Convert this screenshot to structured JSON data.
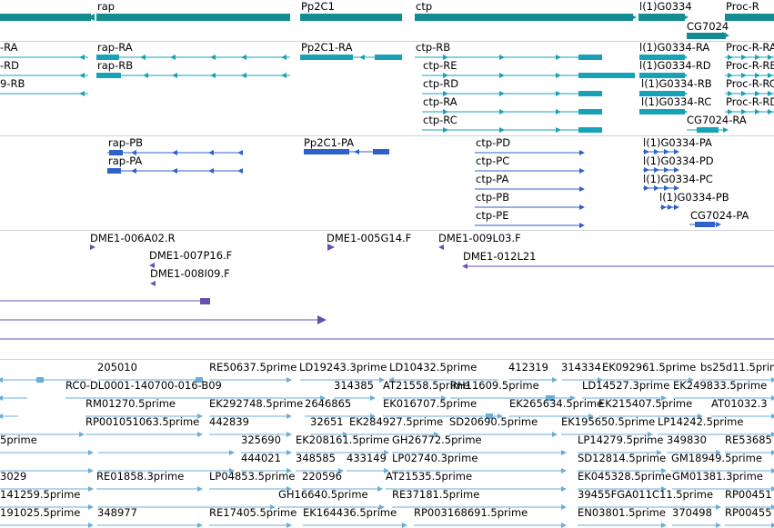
{
  "colors": {
    "gene": "#138d93",
    "transcript": "#17a2b8",
    "translation": "#2f62c9",
    "insertion": "#6a4fae",
    "est": "#6aaed8",
    "separator": "#cfd3d8",
    "background": "#ffffff"
  },
  "tracks": {
    "genes": [
      "rap",
      "Pp2C1",
      "ctp",
      "l(1)G0334",
      "Proc-R",
      "CG7024"
    ],
    "transcripts": [
      "-RA",
      "rap-RA",
      "Pp2C1-RA",
      "ctp-RB",
      "l(1)G0334-RA",
      "Proc-R-RA",
      "-RD",
      "rap-RB",
      "ctp-RE",
      "l(1)G0334-RD",
      "Proc-R-RB",
      "9-RB",
      "ctp-RD",
      "l(1)G0334-RB",
      "Proc-R-RC",
      "ctp-RA",
      "l(1)G0334-RC",
      "Proc-R-RD",
      "ctp-RC",
      "CG7024-RA"
    ],
    "translations": [
      "rap-PB",
      "Pp2C1-PA",
      "ctp-PD",
      "l(1)G0334-PA",
      "rap-PA",
      "ctp-PC",
      "l(1)G0334-PD",
      "ctp-PA",
      "l(1)G0334-PC",
      "ctp-PB",
      "l(1)G0334-PB",
      "ctp-PE",
      "CG7024-PA"
    ],
    "insertions": [
      "DME1-006A02.R",
      "DME1-005G14.F",
      "DME1-009L03.F",
      "DME1-007P16.F",
      "DME1-012L21",
      "DME1-008I09.F"
    ],
    "ests": [
      "205010",
      "RE50637.5prime",
      "LD19243.3prime",
      "LD10432.5prime",
      "412319",
      "314334",
      "EK092961.5prime",
      "bs25d11.5prime",
      "RC0-DL0001-140700-016-B09",
      "314385",
      "AT21558.5prime",
      "RH11609.5prime",
      "LD14527.3prime",
      "EK249833.5prime",
      "RM01270.5prime",
      "EK292748.5prime",
      "2646865",
      "EK016707.5prime",
      "EK265634.5prime",
      "EK215407.5prime",
      "AT01032.3",
      "RP001051063.5prime",
      "442839",
      "32651",
      "EK284927.5prime",
      "SD20690.5prime",
      "EK195650.5prime",
      "LP14242.5prime",
      "5prime",
      "325690",
      "EK208161.5prime",
      "GH26772.5prime",
      "LP14279.5prime",
      "349830",
      "RE53685",
      "444021",
      "348585",
      "433149",
      "LP02740.3prime",
      "SD12814.5prime",
      "GM18949.5prime",
      "3029",
      "RE01858.3prime",
      "LP04853.5prime",
      "220596",
      "AT21535.5prime",
      "EK045328.5prime",
      "GM01381.3prime",
      "141259.5prime",
      "GH16640.5prime",
      "RE37181.5prime",
      "39455FGA011C11.5prime",
      "RP00451",
      "191025.5prime",
      "348977",
      "RE17405.5prime",
      "EK164436.5prime",
      "RP003168691.5prime",
      "EN03801.5prime",
      "370498",
      "RP00455"
    ]
  }
}
